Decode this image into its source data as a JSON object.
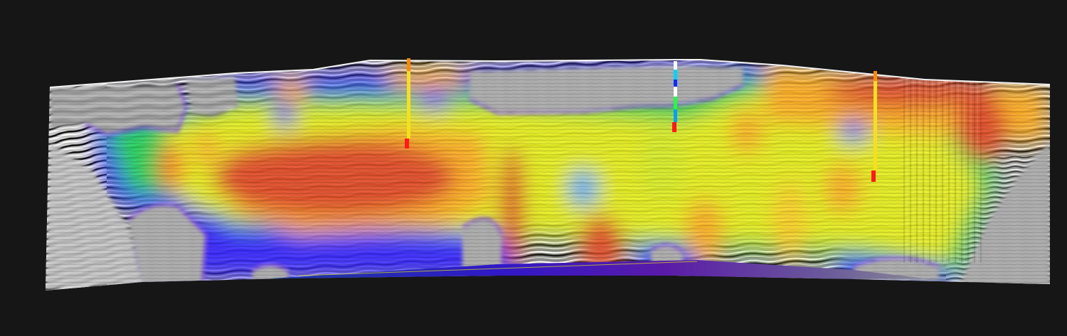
{
  "view": {
    "background": "#161616"
  },
  "section": {
    "kind": "seismic-section-with-attribute-overlay",
    "base_seismic_palette": [
      "#111111",
      "#ffffff",
      "#9a9a9a"
    ],
    "attribute_colormap": [
      "#3a2cff",
      "#46a8ff",
      "#2bd35c",
      "#e8f024",
      "#ffb028",
      "#e4502c"
    ],
    "grey_zones": [
      "upper-left",
      "lower-left",
      "upper-middle",
      "upper-right",
      "lower-right",
      "bottom-pockets"
    ]
  },
  "wells": [
    {
      "name": "well-1",
      "top_color": "#ff8a00",
      "shaft_color": "#f5e020",
      "base_color": "#ff1a1a"
    },
    {
      "name": "well-2",
      "top_color": "#ffffff",
      "shaft_color": "#1aa0ff",
      "base_color": "#ff1a1a",
      "log_colors": [
        "#ffffff",
        "#00d4ff",
        "#0030ff",
        "#00ff60",
        "#20ff40",
        "#ff2020"
      ]
    },
    {
      "name": "well-3",
      "top_color": "#ff8a00",
      "shaft_color": "#f5e020",
      "base_color": "#ff1a1a"
    }
  ],
  "basement_wedge": {
    "colors": [
      "#3018c8",
      "#5a1aa8",
      "#1c3ca0",
      "#7a7a8a"
    ]
  }
}
